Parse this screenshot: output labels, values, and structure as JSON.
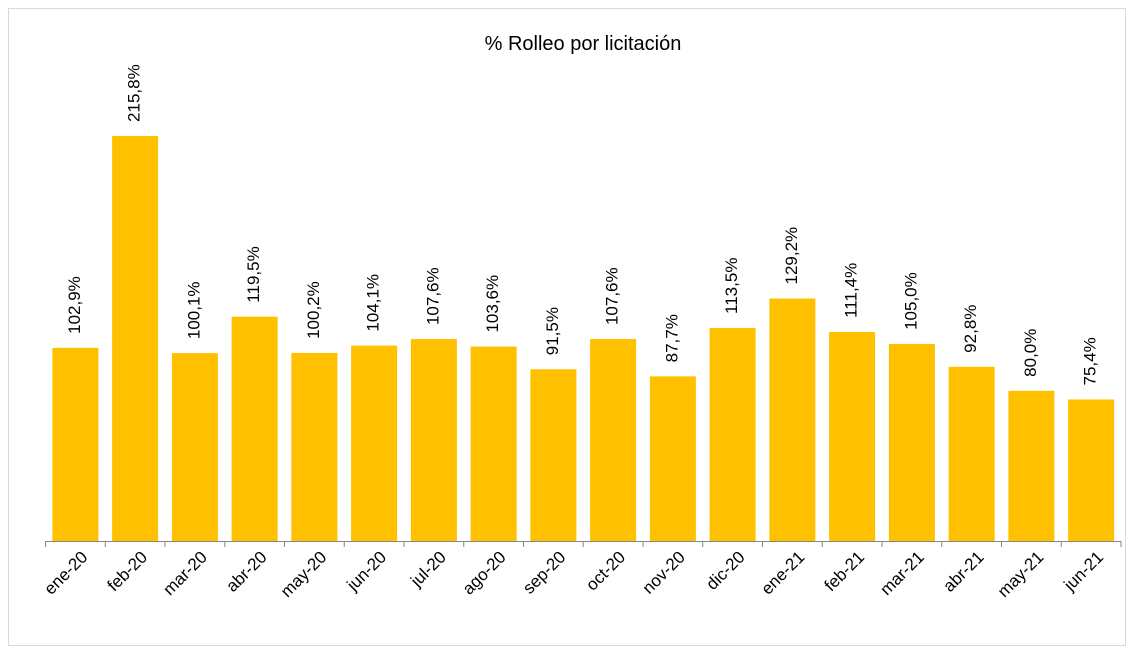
{
  "chart_data": {
    "type": "bar",
    "title": "% Rolleo por licitación",
    "categories": [
      "ene-20",
      "feb-20",
      "mar-20",
      "abr-20",
      "may-20",
      "jun-20",
      "jul-20",
      "ago-20",
      "sep-20",
      "oct-20",
      "nov-20",
      "dic-20",
      "ene-21",
      "feb-21",
      "mar-21",
      "abr-21",
      "may-21",
      "jun-21"
    ],
    "values": [
      102.9,
      215.8,
      100.1,
      119.5,
      100.2,
      104.1,
      107.6,
      103.6,
      91.5,
      107.6,
      87.7,
      113.5,
      129.2,
      111.4,
      105.0,
      92.8,
      80.0,
      75.4
    ],
    "value_labels": [
      "102,9%",
      "215,8%",
      "100,1%",
      "119,5%",
      "100,2%",
      "104,1%",
      "107,6%",
      "103,6%",
      "91,5%",
      "107,6%",
      "87,7%",
      "113,5%",
      "129,2%",
      "111,4%",
      "105,0%",
      "92,8%",
      "80,0%",
      "75,4%"
    ],
    "color": "#FFC000"
  }
}
